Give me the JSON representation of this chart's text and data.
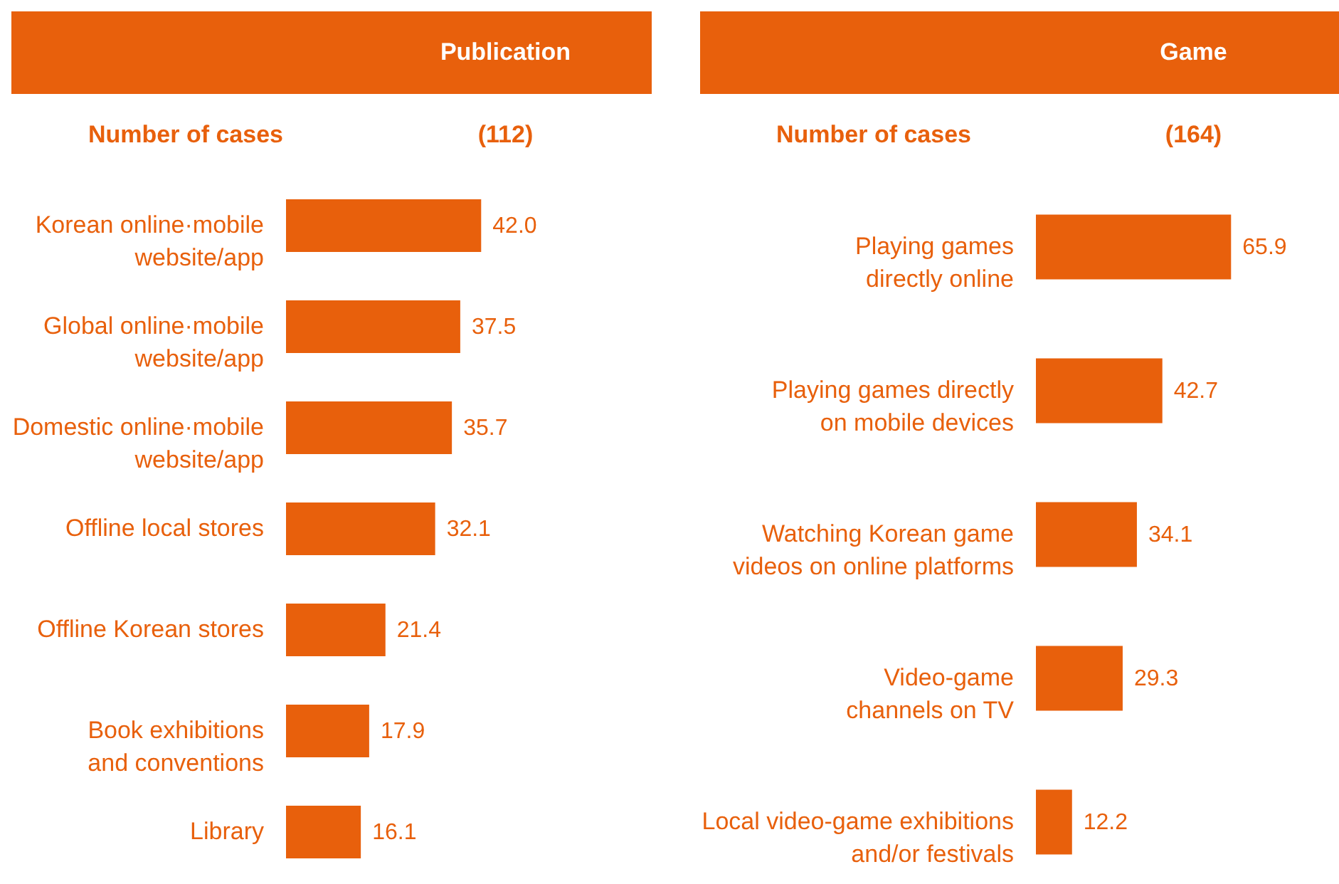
{
  "chart_data": [
    {
      "type": "bar",
      "orientation": "horizontal",
      "title": "Publication",
      "subtitle": "(112)",
      "ylabel": "Number of cases",
      "categories": [
        "Korean online·mobile website/app",
        "Global online·mobile website/app",
        "Domestic online·mobile website/app",
        "Offline local stores",
        "Offline Korean stores",
        "Book exhibitions and conventions",
        "Library"
      ],
      "values": [
        42.0,
        37.5,
        35.7,
        32.1,
        21.4,
        17.9,
        16.1
      ],
      "value_labels": [
        "42.0",
        "37.5",
        "35.7",
        "32.1",
        "21.4",
        "17.9",
        "16.1"
      ],
      "color": "#e8600c"
    },
    {
      "type": "bar",
      "orientation": "horizontal",
      "title": "Game",
      "subtitle": "(164)",
      "ylabel": "Number of cases",
      "categories": [
        "Playing games directly online",
        "Playing games directly on mobile devices",
        "Watching Korean game videos on online platforms",
        "Video-game channels on TV",
        "Local video-game exhibitions and/or festivals"
      ],
      "values": [
        65.9,
        42.7,
        34.1,
        29.3,
        12.2
      ],
      "value_labels": [
        "65.9",
        "42.7",
        "34.1",
        "29.3",
        "12.2"
      ],
      "color": "#e8600c"
    }
  ]
}
